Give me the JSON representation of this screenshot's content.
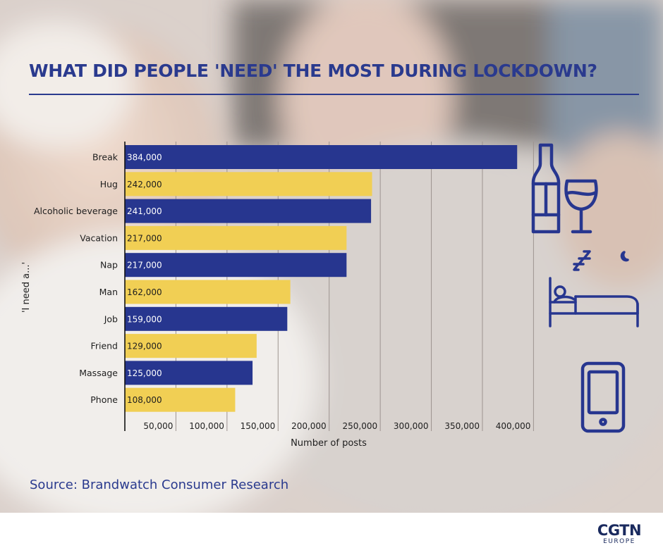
{
  "header": {
    "title": "WHAT DID PEOPLE 'NEED' THE MOST DURING LOCKDOWN?"
  },
  "footer": {
    "source": "Source: Brandwatch Consumer Research",
    "logo_main": "CGTN",
    "logo_sub": "EUROPE"
  },
  "icons": [
    "wine-bottle-and-glass-icon",
    "sleeping-in-bed-icon",
    "smartphone-icon"
  ],
  "colors": {
    "navy": "#27368f",
    "yellow": "#f1cf54",
    "title": "#2a3a8e"
  },
  "chart_data": {
    "type": "bar",
    "orientation": "horizontal",
    "title": "WHAT DID PEOPLE 'NEED' THE MOST DURING LOCKDOWN?",
    "xlabel": "Number of posts",
    "ylabel": "'I need a...'",
    "categories": [
      "Break",
      "Hug",
      "Alcoholic beverage",
      "Vacation",
      "Nap",
      "Man",
      "Job",
      "Friend",
      "Massage",
      "Phone"
    ],
    "values": [
      384000,
      242000,
      241000,
      217000,
      217000,
      162000,
      159000,
      129000,
      125000,
      108000
    ],
    "value_labels": [
      "384,000",
      "242,000",
      "241,000",
      "217,000",
      "217,000",
      "162,000",
      "159,000",
      "129,000",
      "125,000",
      "108,000"
    ],
    "bar_colors": [
      "#27368f",
      "#f1cf54",
      "#27368f",
      "#f1cf54",
      "#27368f",
      "#f1cf54",
      "#27368f",
      "#f1cf54",
      "#27368f",
      "#f1cf54"
    ],
    "xticks": [
      50000,
      100000,
      150000,
      200000,
      250000,
      300000,
      350000,
      400000
    ],
    "xtick_labels": [
      "50,000",
      "100,000",
      "150,000",
      "200,000",
      "250,000",
      "300,000",
      "350,000",
      "400,000"
    ],
    "xlim": [
      0,
      400000
    ],
    "grid": "vertical",
    "legend": "none"
  }
}
